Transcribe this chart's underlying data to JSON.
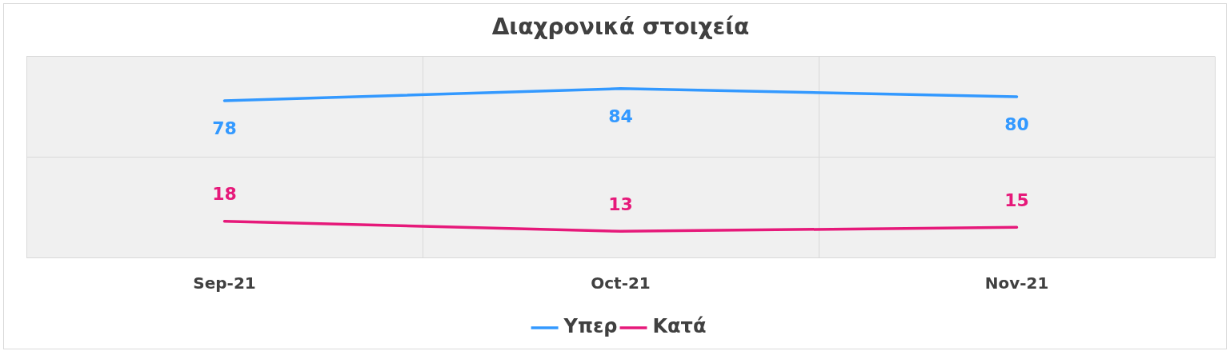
{
  "chart_data": {
    "type": "line",
    "title": "Διαχρονικά στοιχεία",
    "categories": [
      "Sep-21",
      "Oct-21",
      "Nov-21"
    ],
    "series": [
      {
        "name": "Υπερ",
        "color": "#3399ff",
        "values": [
          78,
          84,
          80
        ]
      },
      {
        "name": "Κατά",
        "color": "#e6197a",
        "values": [
          18,
          13,
          15
        ]
      }
    ],
    "ylim": [
      0,
      100
    ],
    "yticks": [
      {
        "value": 0,
        "label": null
      },
      {
        "value": 50,
        "label": null
      },
      {
        "value": 100,
        "label": null
      }
    ],
    "tick_labels": "x",
    "grid": true,
    "legend": "bottom",
    "data_labels": true,
    "marker": "none",
    "line_style": "solid"
  }
}
